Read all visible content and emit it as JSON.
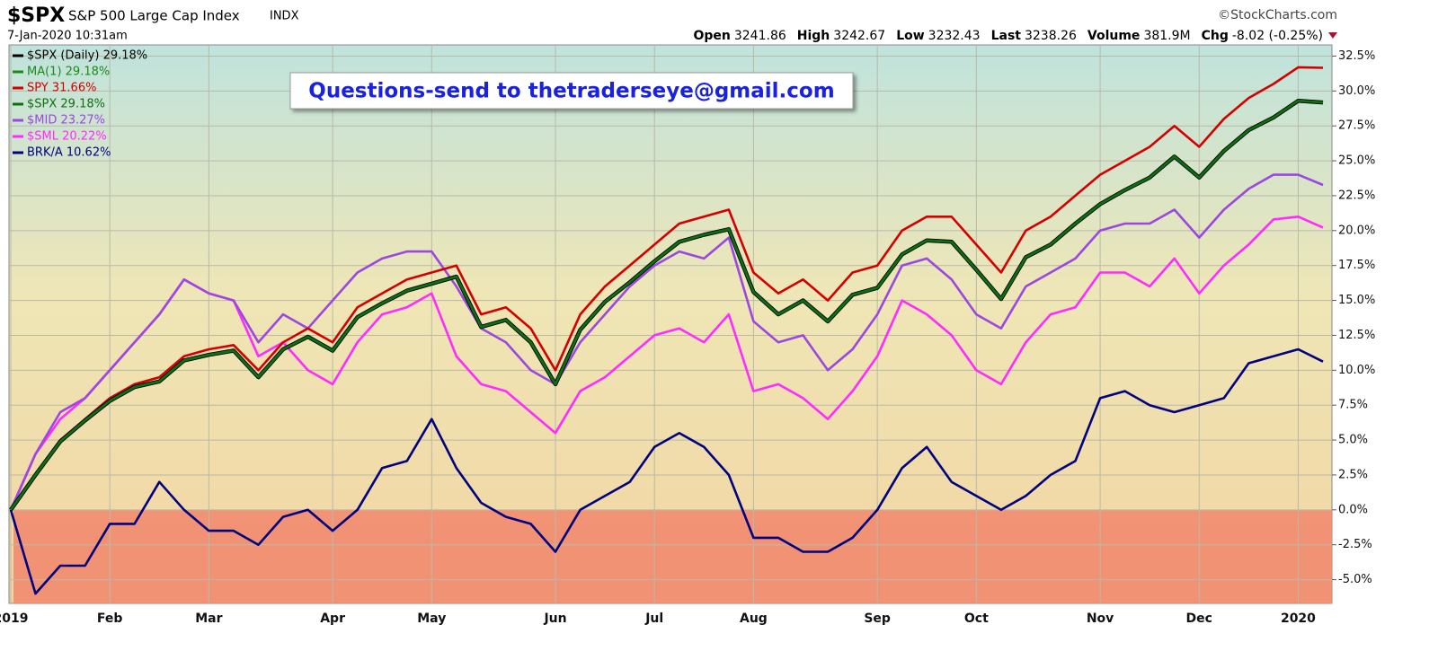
{
  "chart_data": {
    "type": "line",
    "symbol": "$SPX",
    "title": "S&P 500 Large Cap Index",
    "exchange": "INDX",
    "timestamp": "7-Jan-2020 10:31am",
    "source": "©StockCharts.com",
    "quote": [
      {
        "label": "Open",
        "value": 3241.86
      },
      {
        "label": "High",
        "value": 3242.67
      },
      {
        "label": "Low",
        "value": 3232.43
      },
      {
        "label": "Last",
        "value": 3238.26
      },
      {
        "label": "Volume",
        "value": "381.9M"
      },
      {
        "label": "Chg",
        "value": "-8.02 (-0.25%)"
      }
    ],
    "annotation": "Questions-send to thetraderseye@gmail.com",
    "categories": [
      "2019",
      null,
      null,
      null,
      "Feb",
      null,
      null,
      null,
      "Mar",
      null,
      null,
      null,
      null,
      "Apr",
      null,
      null,
      null,
      "May",
      null,
      null,
      null,
      null,
      "Jun",
      null,
      null,
      null,
      "Jul",
      null,
      null,
      null,
      "Aug",
      null,
      null,
      null,
      null,
      "Sep",
      null,
      null,
      null,
      "Oct",
      null,
      null,
      null,
      null,
      "Nov",
      null,
      null,
      null,
      "Dec",
      null,
      null,
      null,
      "2020",
      null
    ],
    "ylim": [
      -6.7,
      33.3
    ],
    "yticks": [
      {
        "value": -5,
        "label": "-5.0%"
      },
      {
        "value": -2.5,
        "label": "-2.5%"
      },
      {
        "value": 0,
        "label": "0.0%"
      },
      {
        "value": 2.5,
        "label": "2.5%"
      },
      {
        "value": 5,
        "label": "5.0%"
      },
      {
        "value": 7.5,
        "label": "7.5%"
      },
      {
        "value": 10,
        "label": "10.0%"
      },
      {
        "value": 12.5,
        "label": "12.5%"
      },
      {
        "value": 15,
        "label": "15.0%"
      },
      {
        "value": 17.5,
        "label": "17.5%"
      },
      {
        "value": 20,
        "label": "20.0%"
      },
      {
        "value": 22.5,
        "label": "22.5%"
      },
      {
        "value": 25,
        "label": "25.0%"
      },
      {
        "value": 27.5,
        "label": "27.5%"
      },
      {
        "value": 30,
        "label": "30.0%"
      },
      {
        "value": 32.5,
        "label": "32.5%"
      }
    ],
    "grid": true,
    "negative_zone_color": "#f28b70",
    "series": [
      {
        "name": "BRK/A 10.62%",
        "color": "#000080",
        "values": [
          0,
          -6,
          -4,
          -4,
          -1,
          -1,
          2,
          0,
          -1.5,
          -1.5,
          -2.5,
          -0.5,
          0,
          -1.5,
          0,
          3,
          3.5,
          6.5,
          3,
          0.5,
          -0.5,
          -1,
          -3,
          0,
          1,
          2,
          4.5,
          5.5,
          4.5,
          2.5,
          -2,
          -2,
          -3,
          -3,
          -2,
          0,
          3,
          4.5,
          2,
          1,
          0,
          1,
          2.5,
          3.5,
          8,
          8.5,
          7.5,
          7,
          7.5,
          8,
          10.5,
          11,
          11.5,
          10.62
        ]
      },
      {
        "name": "$SML 20.22%",
        "color": "#ff2bff",
        "values": [
          0,
          4,
          6.5,
          8,
          10,
          12,
          14,
          16.5,
          15.5,
          15,
          11,
          12,
          10,
          9,
          12,
          14,
          14.5,
          15.5,
          11,
          9,
          8.5,
          7,
          5.5,
          8.5,
          9.5,
          11,
          12.5,
          13,
          12,
          14,
          8.5,
          9,
          8,
          6.5,
          8.5,
          11,
          15,
          14,
          12.5,
          10,
          9,
          12,
          14,
          14.5,
          17,
          17,
          16,
          18,
          15.5,
          17.5,
          19,
          20.8,
          21,
          20.22
        ]
      },
      {
        "name": "$MID 23.27%",
        "color": "#9a48e0",
        "values": [
          0,
          4,
          7,
          8,
          10,
          12,
          14,
          16.5,
          15.5,
          15,
          12,
          14,
          13,
          15,
          17,
          18,
          18.5,
          18.5,
          16,
          13,
          12,
          10,
          9,
          12,
          14,
          16,
          17.5,
          18.5,
          18,
          19.5,
          13.5,
          12,
          12.5,
          10,
          11.5,
          14,
          17.5,
          18,
          16.5,
          14,
          13,
          16,
          17,
          18,
          20,
          20.5,
          20.5,
          21.5,
          19.5,
          21.5,
          23,
          24,
          24,
          23.27
        ]
      },
      {
        "name": "SPY 31.66%",
        "color": "#d40000",
        "values": [
          0,
          2.5,
          5,
          6.5,
          8,
          9,
          9.5,
          11,
          11.5,
          11.8,
          10,
          12,
          13,
          12,
          14.5,
          15.5,
          16.5,
          17,
          17.5,
          14,
          14.5,
          13,
          10,
          14,
          16,
          17.5,
          19,
          20.5,
          21,
          21.5,
          17,
          15.5,
          16.5,
          15,
          17,
          17.5,
          20,
          21,
          21,
          19,
          17,
          20,
          21,
          22.5,
          24,
          25,
          26,
          27.5,
          26,
          28,
          29.5,
          30.5,
          31.7,
          31.66
        ]
      },
      {
        "name": "$SPX (Daily) 29.18%",
        "color": "#000000",
        "values": [
          0,
          2.5,
          4.9,
          6.4,
          7.8,
          8.8,
          9.2,
          10.7,
          11.1,
          11.4,
          9.5,
          11.5,
          12.4,
          11.4,
          13.8,
          14.8,
          15.7,
          16.2,
          16.7,
          13.1,
          13.6,
          12,
          9,
          12.9,
          14.9,
          16.3,
          17.8,
          19.2,
          19.7,
          20.1,
          15.6,
          14,
          15,
          13.5,
          15.4,
          15.9,
          18.3,
          19.3,
          19.2,
          17.2,
          15.1,
          18.1,
          19,
          20.5,
          21.9,
          22.9,
          23.8,
          25.3,
          23.8,
          25.7,
          27.2,
          28.1,
          29.3,
          29.18
        ]
      },
      {
        "name": "MA(1) 29.18%",
        "color": "#1b8a1b",
        "values": [
          0,
          2.5,
          4.9,
          6.4,
          7.8,
          8.8,
          9.2,
          10.7,
          11.1,
          11.4,
          9.5,
          11.5,
          12.4,
          11.4,
          13.8,
          14.8,
          15.7,
          16.2,
          16.7,
          13.1,
          13.6,
          12,
          9,
          12.9,
          14.9,
          16.3,
          17.8,
          19.2,
          19.7,
          20.1,
          15.6,
          14,
          15,
          13.5,
          15.4,
          15.9,
          18.3,
          19.3,
          19.2,
          17.2,
          15.1,
          18.1,
          19,
          20.5,
          21.9,
          22.9,
          23.8,
          25.3,
          23.8,
          25.7,
          27.2,
          28.1,
          29.3,
          29.18
        ]
      },
      {
        "name": "$SPX 29.18%",
        "color": "#0f6e0f",
        "values": [
          0,
          2.5,
          4.9,
          6.4,
          7.8,
          8.8,
          9.2,
          10.7,
          11.1,
          11.4,
          9.5,
          11.5,
          12.4,
          11.4,
          13.8,
          14.8,
          15.7,
          16.2,
          16.7,
          13.1,
          13.6,
          12,
          9,
          12.9,
          14.9,
          16.3,
          17.8,
          19.2,
          19.7,
          20.1,
          15.6,
          14,
          15,
          13.5,
          15.4,
          15.9,
          18.3,
          19.3,
          19.2,
          17.2,
          15.1,
          18.1,
          19,
          20.5,
          21.9,
          22.9,
          23.8,
          25.3,
          23.8,
          25.7,
          27.2,
          28.1,
          29.3,
          29.18
        ]
      }
    ],
    "legend_order": [
      4,
      5,
      3,
      6,
      2,
      1,
      0
    ]
  }
}
